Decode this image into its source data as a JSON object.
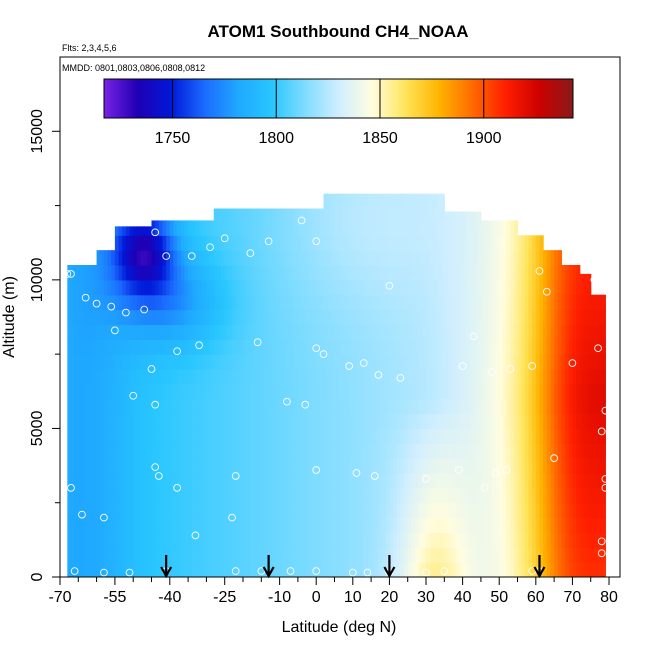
{
  "chart_data": {
    "type": "heatmap",
    "title": "ATOM1 Southbound CH4_NOAA",
    "annotations": [
      "Flts: 2,3,4,5,6",
      "MMDD: 0801,0803,0806,0808,0812"
    ],
    "xlabel": "Latitude (deg N)",
    "ylabel": "Altitude (m)",
    "xlim": [
      -70,
      83
    ],
    "ylim": [
      0,
      17500
    ],
    "x_ticks": [
      -70,
      -55,
      -40,
      -25,
      -10,
      0,
      10,
      20,
      30,
      40,
      50,
      60,
      70,
      80
    ],
    "x_tick_labels": [
      "-70",
      "-55",
      "-40",
      "-25",
      "-10",
      "0",
      "10",
      "20",
      "30",
      "40",
      "50",
      "60",
      "70",
      "80"
    ],
    "x_minor_ticks": [
      -65,
      -60,
      -50,
      -45,
      -35,
      -30,
      -20,
      -15,
      -5,
      5,
      15,
      25,
      35,
      45,
      55,
      65,
      75
    ],
    "y_ticks": [
      0,
      5000,
      10000,
      15000
    ],
    "y_tick_labels": [
      "0",
      "5000",
      "10000",
      "15000"
    ],
    "y_minor_ticks": [
      2500,
      7500,
      12500
    ],
    "colorbar": {
      "range": [
        1717,
        1943
      ],
      "ticks": [
        1750,
        1800,
        1850,
        1900
      ],
      "tick_labels": [
        "1750",
        "1800",
        "1850",
        "1900"
      ],
      "colors": [
        "#7a22e6",
        "#1f00b4",
        "#0018d8",
        "#1b6bff",
        "#1fa8ff",
        "#28c6ff",
        "#7fdcff",
        "#cfeeff",
        "#fffde0",
        "#ffe45a",
        "#ffb400",
        "#ff6a00",
        "#ff1e00",
        "#cc0000",
        "#8a1a1a"
      ]
    },
    "arrow_latitudes": [
      -41,
      -13,
      20,
      61
    ],
    "samples": [
      {
        "lat": -67,
        "alt": 10200
      },
      {
        "lat": -68,
        "alt": 10200
      },
      {
        "lat": -44,
        "alt": 11600
      },
      {
        "lat": -41,
        "alt": 10800
      },
      {
        "lat": -34,
        "alt": 10800
      },
      {
        "lat": -29,
        "alt": 11100
      },
      {
        "lat": -25,
        "alt": 11400
      },
      {
        "lat": -18,
        "alt": 10900
      },
      {
        "lat": -13,
        "alt": 11300
      },
      {
        "lat": -4,
        "alt": 12000
      },
      {
        "lat": 0,
        "alt": 11300
      },
      {
        "lat": 20,
        "alt": 9800
      },
      {
        "lat": 61,
        "alt": 10300
      },
      {
        "lat": 63,
        "alt": 9600
      },
      {
        "lat": 76,
        "alt": 10000
      },
      {
        "lat": -63,
        "alt": 9400
      },
      {
        "lat": -60,
        "alt": 9200
      },
      {
        "lat": -56,
        "alt": 9100
      },
      {
        "lat": -52,
        "alt": 8900
      },
      {
        "lat": -47,
        "alt": 9000
      },
      {
        "lat": -55,
        "alt": 8300
      },
      {
        "lat": -38,
        "alt": 7600
      },
      {
        "lat": -32,
        "alt": 7800
      },
      {
        "lat": -16,
        "alt": 7900
      },
      {
        "lat": 0,
        "alt": 7700
      },
      {
        "lat": 2,
        "alt": 7500
      },
      {
        "lat": 9,
        "alt": 7100
      },
      {
        "lat": 13,
        "alt": 7200
      },
      {
        "lat": 17,
        "alt": 6800
      },
      {
        "lat": 23,
        "alt": 6700
      },
      {
        "lat": 43,
        "alt": 8100
      },
      {
        "lat": 40,
        "alt": 7100
      },
      {
        "lat": 48,
        "alt": 6900
      },
      {
        "lat": 53,
        "alt": 7000
      },
      {
        "lat": 59,
        "alt": 7100
      },
      {
        "lat": 70,
        "alt": 7200
      },
      {
        "lat": 77,
        "alt": 7700
      },
      {
        "lat": -45,
        "alt": 7000
      },
      {
        "lat": -50,
        "alt": 6100
      },
      {
        "lat": -44,
        "alt": 5800
      },
      {
        "lat": -8,
        "alt": 5900
      },
      {
        "lat": -3,
        "alt": 5800
      },
      {
        "lat": 79,
        "alt": 5600
      },
      {
        "lat": 78,
        "alt": 4900
      },
      {
        "lat": 65,
        "alt": 4000
      },
      {
        "lat": 52,
        "alt": 3600
      },
      {
        "lat": 49,
        "alt": 3500
      },
      {
        "lat": 39,
        "alt": 3600
      },
      {
        "lat": 30,
        "alt": 3300
      },
      {
        "lat": 16,
        "alt": 3400
      },
      {
        "lat": 11,
        "alt": 3500
      },
      {
        "lat": 0,
        "alt": 3600
      },
      {
        "lat": -22,
        "alt": 3400
      },
      {
        "lat": -44,
        "alt": 3700
      },
      {
        "lat": -43,
        "alt": 3400
      },
      {
        "lat": -38,
        "alt": 3000
      },
      {
        "lat": -67,
        "alt": 3000
      },
      {
        "lat": 46,
        "alt": 3000
      },
      {
        "lat": 79,
        "alt": 3000
      },
      {
        "lat": 79,
        "alt": 3300
      },
      {
        "lat": -64,
        "alt": 2100
      },
      {
        "lat": -58,
        "alt": 2000
      },
      {
        "lat": -23,
        "alt": 2000
      },
      {
        "lat": -33,
        "alt": 1400
      },
      {
        "lat": 78,
        "alt": 1200
      },
      {
        "lat": 78,
        "alt": 800
      },
      {
        "lat": -66,
        "alt": 200
      },
      {
        "lat": -58,
        "alt": 150
      },
      {
        "lat": -51,
        "alt": 150
      },
      {
        "lat": -41,
        "alt": 200
      },
      {
        "lat": -22,
        "alt": 200
      },
      {
        "lat": -15,
        "alt": 200
      },
      {
        "lat": -7,
        "alt": 200
      },
      {
        "lat": 0,
        "alt": 200
      },
      {
        "lat": 10,
        "alt": 150
      },
      {
        "lat": 14,
        "alt": 150
      },
      {
        "lat": 20,
        "alt": 150
      },
      {
        "lat": 30,
        "alt": 150
      },
      {
        "lat": 35,
        "alt": 200
      },
      {
        "lat": 59,
        "alt": 200
      },
      {
        "lat": 61,
        "alt": 200
      }
    ]
  }
}
